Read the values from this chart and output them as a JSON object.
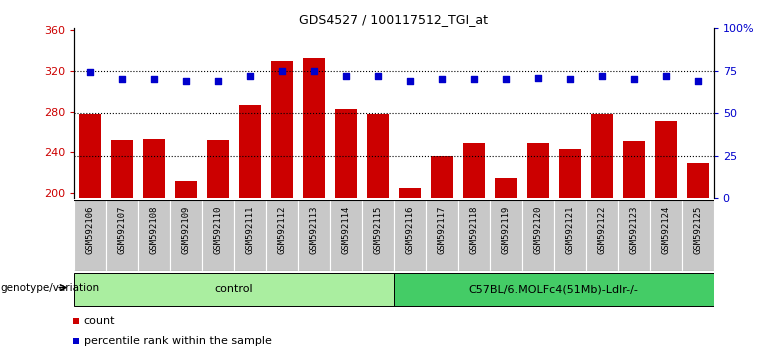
{
  "title": "GDS4527 / 100117512_TGI_at",
  "samples": [
    "GSM592106",
    "GSM592107",
    "GSM592108",
    "GSM592109",
    "GSM592110",
    "GSM592111",
    "GSM592112",
    "GSM592113",
    "GSM592114",
    "GSM592115",
    "GSM592116",
    "GSM592117",
    "GSM592118",
    "GSM592119",
    "GSM592120",
    "GSM592121",
    "GSM592122",
    "GSM592123",
    "GSM592124",
    "GSM592125"
  ],
  "counts": [
    278,
    252,
    253,
    212,
    252,
    287,
    330,
    333,
    283,
    278,
    205,
    237,
    249,
    215,
    249,
    243,
    278,
    251,
    271,
    230
  ],
  "percentile_ranks": [
    74,
    70,
    70,
    69,
    69,
    72,
    75,
    75,
    72,
    72,
    69,
    70,
    70,
    70,
    71,
    70,
    72,
    70,
    72,
    69
  ],
  "groups": [
    {
      "label": "control",
      "start": 0,
      "end": 10,
      "color": "#AAEEA0"
    },
    {
      "label": "C57BL/6.MOLFc4(51Mb)-Ldlr-/-",
      "start": 10,
      "end": 20,
      "color": "#44CC66"
    }
  ],
  "ylim_left": [
    195,
    362
  ],
  "ylim_right": [
    0,
    100
  ],
  "yticks_left": [
    200,
    240,
    280,
    320,
    360
  ],
  "yticks_right": [
    0,
    25,
    50,
    75,
    100
  ],
  "bar_color": "#CC0000",
  "dot_color": "#0000CC",
  "background_color": "#FFFFFF",
  "tick_label_bg": "#C8C8C8",
  "legend_count_color": "#CC0000",
  "legend_pct_color": "#0000CC",
  "gridline_pcts": [
    25,
    50,
    75
  ]
}
